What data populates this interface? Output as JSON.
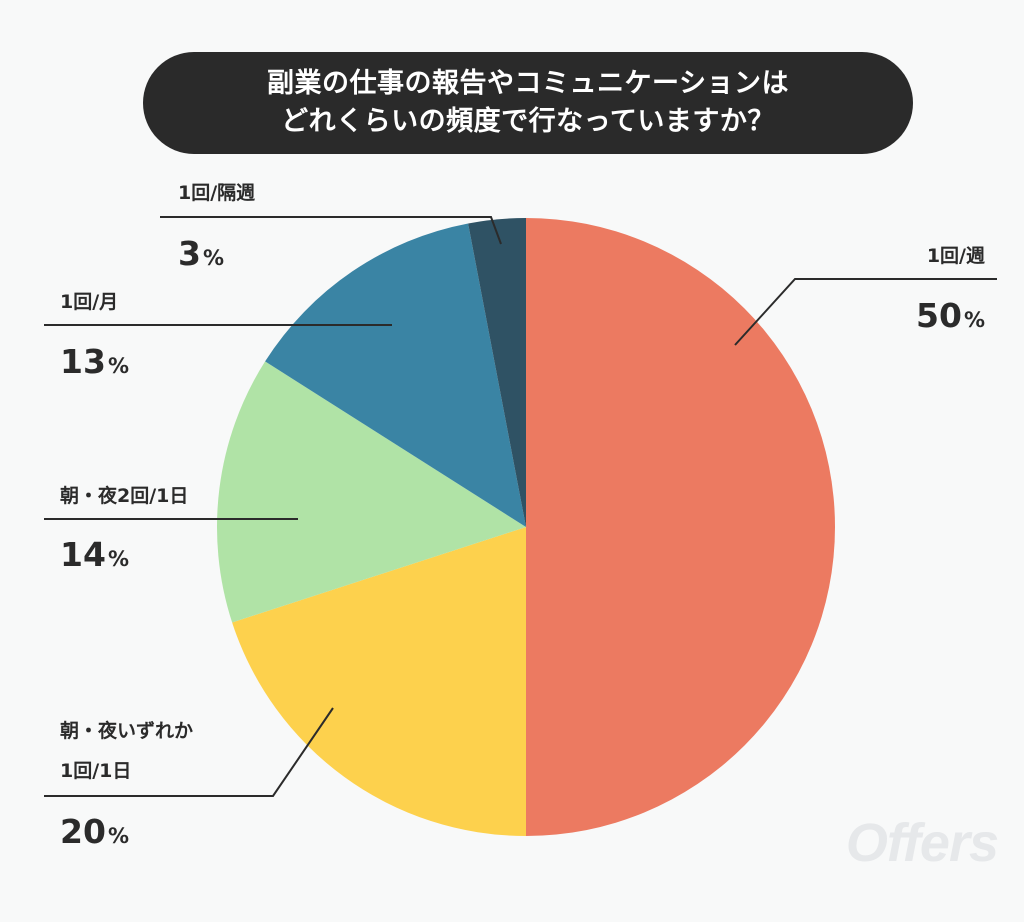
{
  "title": {
    "line1": "副業の仕事の報告やコミュニケーションは",
    "line2": "どれくらいの頻度で行なっていますか？"
  },
  "brand": "Offers",
  "chart_data": {
    "type": "pie",
    "title": "副業の仕事の報告やコミュニケーションはどれくらいの頻度で行なっていますか？",
    "unit": "%",
    "slices": [
      {
        "label": "1回/週",
        "label_lines": [
          "1回/週"
        ],
        "value": 50,
        "color": "#ec7a61"
      },
      {
        "label": "朝・夜いずれか1回/1日",
        "label_lines": [
          "朝・夜いずれか",
          "1回/1日"
        ],
        "value": 20,
        "color": "#fdd14d"
      },
      {
        "label": "朝・夜2回/1日",
        "label_lines": [
          "朝・夜2回/1日"
        ],
        "value": 14,
        "color": "#b0e3a6"
      },
      {
        "label": "1回/月",
        "label_lines": [
          "1回/月"
        ],
        "value": 13,
        "color": "#3a84a4"
      },
      {
        "label": "1回/隔週",
        "label_lines": [
          "1回/隔週"
        ],
        "value": 3,
        "color": "#2f5264"
      }
    ]
  }
}
